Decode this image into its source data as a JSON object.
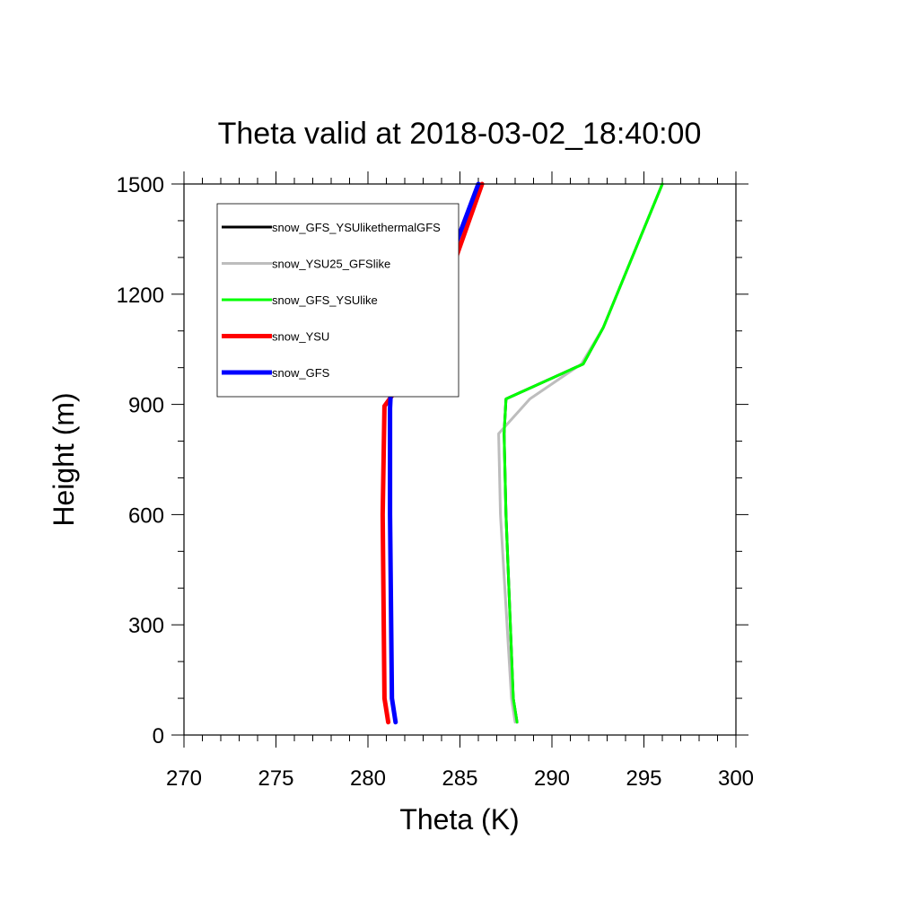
{
  "chart_data": {
    "type": "line",
    "title": "Theta valid at 2018-03-02_18:40:00",
    "xlabel": "Theta (K)",
    "ylabel": "Height (m)",
    "xlim": [
      270,
      300
    ],
    "ylim": [
      0,
      1500
    ],
    "xticks": [
      270,
      275,
      280,
      285,
      290,
      295,
      300
    ],
    "yticks": [
      0,
      300,
      600,
      900,
      1200,
      1500
    ],
    "grid": false,
    "legend": "top-left",
    "series": [
      {
        "name": "snow_GFS_YSUlikethermalGFS",
        "color": "#000000",
        "points": [
          [
            288.1,
            35
          ],
          [
            287.9,
            100
          ],
          [
            287.5,
            600
          ],
          [
            287.4,
            820
          ],
          [
            287.5,
            915
          ],
          [
            291.7,
            1010
          ],
          [
            292.8,
            1110
          ],
          [
            296.0,
            1500
          ]
        ]
      },
      {
        "name": "snow_YSU25_GFSlike",
        "color": "#bdbdbd",
        "points": [
          [
            288.0,
            35
          ],
          [
            287.8,
            100
          ],
          [
            287.2,
            600
          ],
          [
            287.1,
            820
          ],
          [
            288.8,
            915
          ],
          [
            291.6,
            1010
          ],
          [
            292.8,
            1110
          ],
          [
            296.0,
            1500
          ]
        ]
      },
      {
        "name": "snow_GFS_YSUlike",
        "color": "#00ff00",
        "points": [
          [
            288.1,
            35
          ],
          [
            287.9,
            100
          ],
          [
            287.5,
            600
          ],
          [
            287.4,
            820
          ],
          [
            287.5,
            915
          ],
          [
            291.7,
            1010
          ],
          [
            292.8,
            1110
          ],
          [
            296.0,
            1500
          ]
        ]
      },
      {
        "name": "snow_YSU",
        "color": "#ff0000",
        "points": [
          [
            281.1,
            35
          ],
          [
            280.9,
            100
          ],
          [
            280.8,
            600
          ],
          [
            280.9,
            895
          ],
          [
            281.4,
            930
          ],
          [
            282.1,
            1000
          ],
          [
            283.3,
            1090
          ],
          [
            286.2,
            1500
          ]
        ]
      },
      {
        "name": "snow_GFS",
        "color": "#0000ff",
        "points": [
          [
            281.5,
            35
          ],
          [
            281.3,
            100
          ],
          [
            281.2,
            600
          ],
          [
            281.2,
            890
          ],
          [
            281.3,
            1000
          ],
          [
            281.6,
            1090
          ],
          [
            282.8,
            1190
          ],
          [
            284.5,
            1300
          ],
          [
            286.0,
            1500
          ]
        ]
      }
    ]
  }
}
